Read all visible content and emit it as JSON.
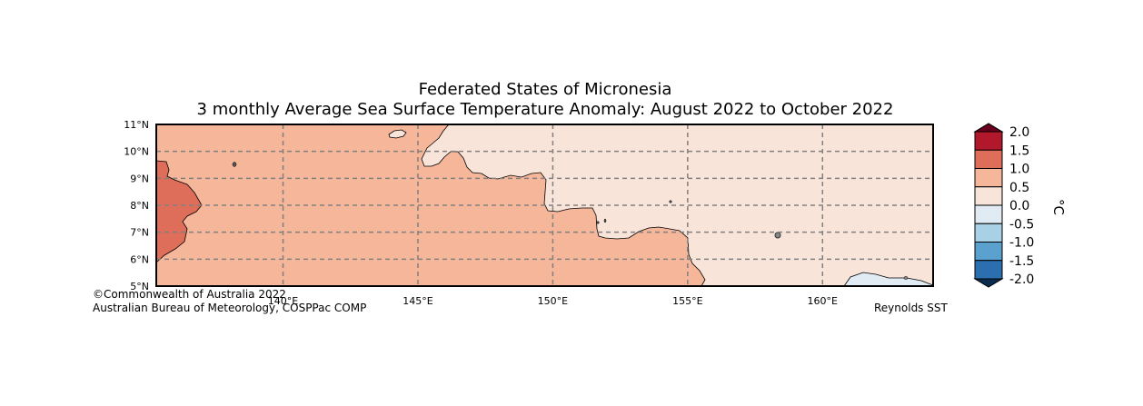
{
  "title": {
    "line1": "Federated States of Micronesia",
    "line2": "3 monthly Average Sea Surface Temperature Anomaly: August 2022 to October 2022"
  },
  "map": {
    "lon_range": [
      135.3,
      164.1
    ],
    "lat_range": [
      5,
      11
    ],
    "lat_ticks": [
      {
        "value": 11,
        "label": "11°N"
      },
      {
        "value": 10,
        "label": "10°N"
      },
      {
        "value": 9,
        "label": "9°N"
      },
      {
        "value": 8,
        "label": "8°N"
      },
      {
        "value": 7,
        "label": "7°N"
      },
      {
        "value": 6,
        "label": "6°N"
      },
      {
        "value": 5,
        "label": "5°N"
      }
    ],
    "lon_ticks": [
      {
        "value": 140,
        "label": "140°E"
      },
      {
        "value": 145,
        "label": "145°E"
      },
      {
        "value": 150,
        "label": "150°E"
      },
      {
        "value": 155,
        "label": "155°E"
      },
      {
        "value": 160,
        "label": "160°E"
      }
    ],
    "gridlines": true
  },
  "colorbar": {
    "unit": "°C",
    "labels": [
      "2.0",
      "1.5",
      "1.0",
      "0.5",
      "0.0",
      "-0.5",
      "-1.0",
      "-1.5",
      "-2.0"
    ],
    "bins": [
      {
        "range": "above 2.0",
        "color": "#67001f"
      },
      {
        "range": "1.5 to 2.0",
        "color": "#b2182b"
      },
      {
        "range": "1.0 to 1.5",
        "color": "#de6e5a"
      },
      {
        "range": "0.5 to 1.0",
        "color": "#f5b699"
      },
      {
        "range": "0.0 to 0.5",
        "color": "#f9e4da"
      },
      {
        "range": "-0.5 to 0.0",
        "color": "#e0ebf3"
      },
      {
        "range": "-1.0 to -0.5",
        "color": "#a8d1e6"
      },
      {
        "range": "-1.5 to -1.0",
        "color": "#5aa1cf"
      },
      {
        "range": "-2.0 to -1.5",
        "color": "#2b6faf"
      },
      {
        "range": "below -2.0",
        "color": "#0b2a4f"
      }
    ]
  },
  "credits": {
    "line1": "©Commonwealth of Australia 2022",
    "line2": "Australian Bureau of Meteorology, COSPPac COMP",
    "source": "Reynolds SST"
  }
}
